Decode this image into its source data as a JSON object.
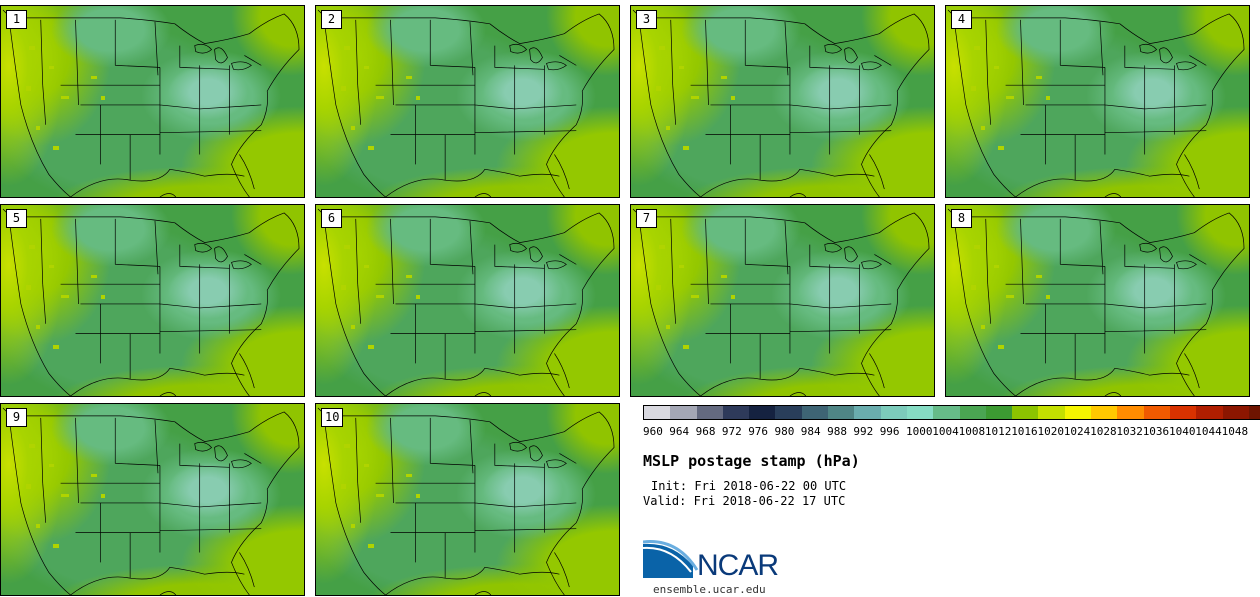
{
  "stamps": [
    {
      "label": "1"
    },
    {
      "label": "2"
    },
    {
      "label": "3"
    },
    {
      "label": "4"
    },
    {
      "label": "5"
    },
    {
      "label": "6"
    },
    {
      "label": "7"
    },
    {
      "label": "8"
    },
    {
      "label": "9"
    },
    {
      "label": "10"
    }
  ],
  "colorbar": {
    "colors": [
      "#d9d9e0",
      "#a4a7b5",
      "#646a80",
      "#2e3a5a",
      "#152240",
      "#293e5a",
      "#3e6474",
      "#4f8585",
      "#6aadae",
      "#7ccbbb",
      "#86dcc4",
      "#66bb88",
      "#4aa552",
      "#3c9a32",
      "#8cc400",
      "#c4e000",
      "#f5f500",
      "#ffc800",
      "#ff8c00",
      "#f05a00",
      "#d83200",
      "#b01e00",
      "#8c1600",
      "#6e1400"
    ],
    "ticks": [
      "960",
      "964",
      "968",
      "972",
      "976",
      "980",
      "984",
      "988",
      "992",
      "996",
      "1000",
      "1004",
      "1008",
      "1012",
      "1016",
      "1020",
      "1024",
      "1028",
      "1032",
      "1036",
      "1040",
      "1044",
      "1048"
    ]
  },
  "title": "MSLP postage stamp (hPa)",
  "init": "Init: Fri 2018-06-22 00 UTC",
  "valid": "Valid: Fri 2018-06-22 17 UTC",
  "logo": {
    "brand": "NCAR",
    "site": "ensemble.ucar.edu"
  }
}
